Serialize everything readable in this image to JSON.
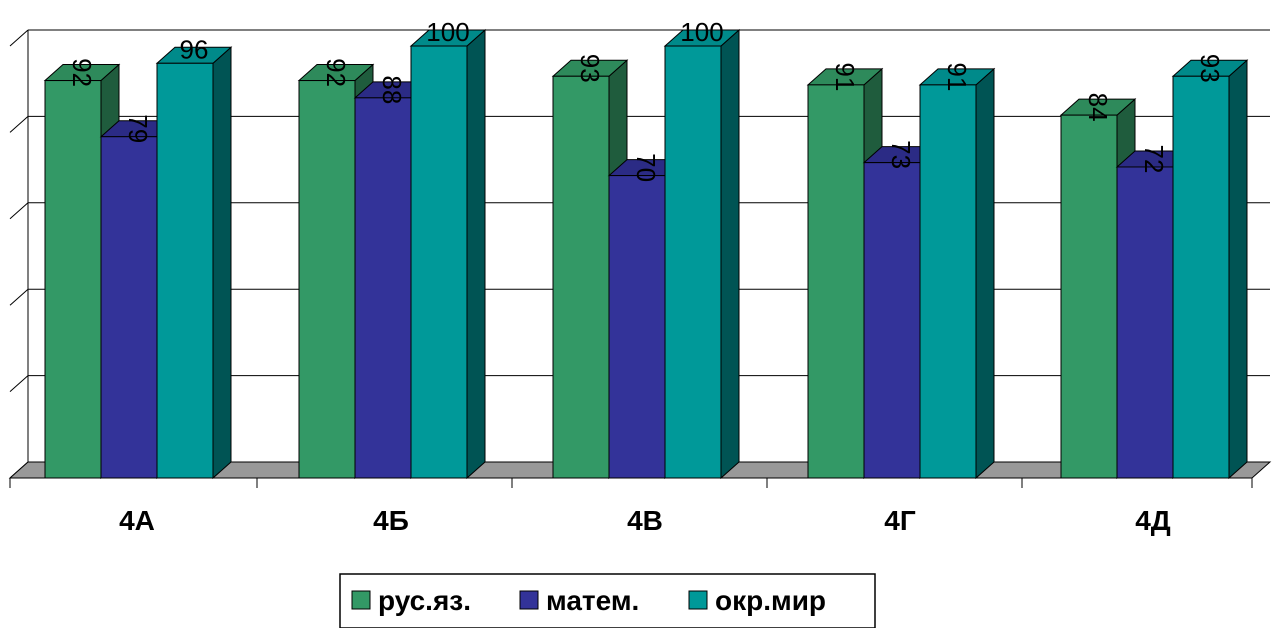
{
  "chart_data": {
    "type": "bar",
    "style": "3d-clustered-column",
    "categories": [
      "4А",
      "4Б",
      "4В",
      "4Г",
      "4Д"
    ],
    "series": [
      {
        "name": "рус.яз.",
        "values": [
          92,
          92,
          93,
          91,
          84
        ],
        "color": "#339966",
        "side_color": "#1f5c3d",
        "top_color": "#2e8a5b"
      },
      {
        "name": "матем.",
        "values": [
          79,
          88,
          70,
          73,
          72
        ],
        "color": "#333399",
        "side_color": "#1f1f5c",
        "top_color": "#2b2b85"
      },
      {
        "name": "окр.мир",
        "values": [
          96,
          100,
          100,
          91,
          93
        ],
        "color": "#009999",
        "side_color": "#005454",
        "top_color": "#008a8a"
      }
    ],
    "ylim": [
      0,
      100
    ],
    "grid": true,
    "legend_position": "bottom"
  }
}
